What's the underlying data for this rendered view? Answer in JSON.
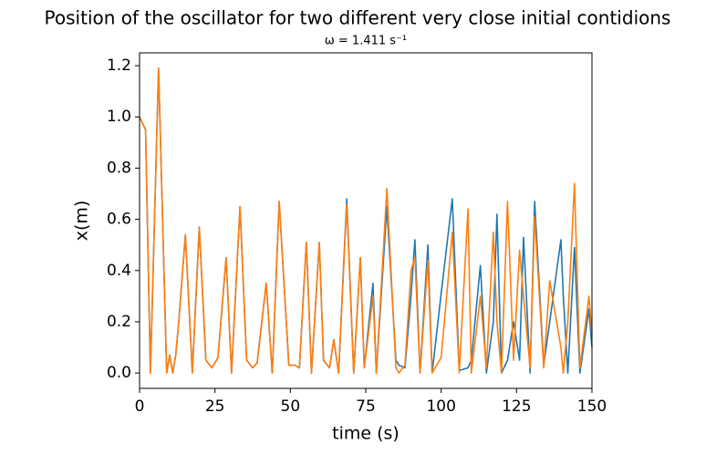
{
  "chart_data": {
    "type": "line",
    "title": "Position of the oscillator for two different very close initial contidions",
    "subtitle": "ω = 1.411 s⁻¹",
    "x_label": "time (s)",
    "y_label": "x(m)",
    "xlim": [
      0,
      150
    ],
    "ylim": [
      -0.06,
      1.25
    ],
    "xticks": [
      0,
      25,
      50,
      75,
      100,
      125,
      150
    ],
    "yticks": [
      {
        "value": 0,
        "label": "0.0"
      },
      0.2,
      0.4,
      0.6,
      0.8,
      {
        "value": 1,
        "label": "1.0"
      },
      1.2
    ],
    "grid": false,
    "x": [
      0,
      2,
      3.6,
      6.3,
      9,
      10,
      11,
      12,
      13,
      15.2,
      17.5,
      19.8,
      22,
      24,
      26,
      28.7,
      30.5,
      33.3,
      35.5,
      37.5,
      39,
      42,
      44,
      46.3,
      49.5,
      51.5,
      53,
      55.3,
      57,
      59.6,
      61,
      63,
      64.4,
      66,
      68.7,
      71,
      73.2,
      74.5,
      77.4,
      78.5,
      82,
      85,
      86,
      88,
      90,
      91.3,
      93,
      95.6,
      97,
      100,
      103.7,
      106,
      108.9,
      110,
      113,
      115,
      117.3,
      118.5,
      120,
      122,
      124,
      126,
      127.3,
      129.5,
      131,
      134,
      136,
      139.7,
      140.5,
      142,
      144.2,
      146,
      149,
      150
    ],
    "series": [
      {
        "color": "#1f77b4",
        "values": [
          1.0,
          0.95,
          0,
          1.19,
          0,
          0.07,
          0,
          0.07,
          0.2,
          0.54,
          0,
          0.57,
          0.05,
          0.02,
          0.06,
          0.45,
          0,
          0.65,
          0.05,
          0.02,
          0.04,
          0.35,
          0,
          0.67,
          0.03,
          0.03,
          0.02,
          0.51,
          0,
          0.51,
          0.05,
          0.02,
          0.13,
          0,
          0.68,
          0,
          0.45,
          0.02,
          0.35,
          0,
          0.65,
          0.05,
          0.03,
          0.02,
          0.3,
          0.52,
          0,
          0.5,
          0,
          0.31,
          0.68,
          0.01,
          0.02,
          0.05,
          0.42,
          0,
          0.2,
          0.62,
          0,
          0.05,
          0.2,
          0.05,
          0.53,
          0,
          0.67,
          0.03,
          0.2,
          0.52,
          0.3,
          0,
          0.49,
          0,
          0.25,
          0.1
        ]
      },
      {
        "color": "#ff7f0e",
        "values": [
          1.0,
          0.95,
          0,
          1.19,
          0,
          0.07,
          0,
          0.07,
          0.2,
          0.54,
          0,
          0.57,
          0.05,
          0.02,
          0.06,
          0.45,
          0,
          0.65,
          0.05,
          0.02,
          0.04,
          0.35,
          0,
          0.67,
          0.03,
          0.03,
          0.02,
          0.51,
          0,
          0.51,
          0.05,
          0.02,
          0.13,
          0,
          0.66,
          0,
          0.45,
          0.02,
          0.3,
          0,
          0.72,
          0.02,
          0,
          0.03,
          0.4,
          0.45,
          0,
          0.44,
          0,
          0.06,
          0.55,
          0,
          0.64,
          0,
          0.3,
          0.02,
          0.55,
          0.2,
          0,
          0.67,
          0.05,
          0.48,
          0.3,
          0.02,
          0.61,
          0.02,
          0.36,
          0.1,
          0,
          0.2,
          0.74,
          0.02,
          0.3,
          0.15
        ]
      }
    ]
  }
}
